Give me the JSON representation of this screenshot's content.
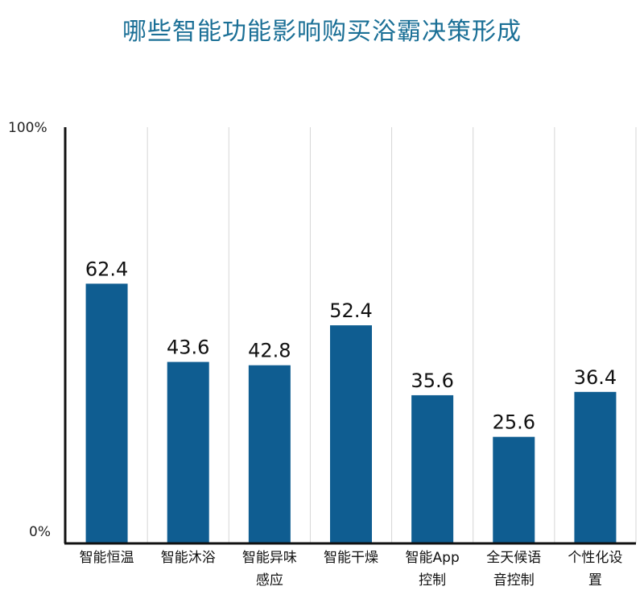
{
  "chart_data": {
    "type": "bar",
    "title": "哪些智能功能影响购买浴霸决策形成",
    "categories": [
      [
        "智能恒温"
      ],
      [
        "智能沐浴"
      ],
      [
        "智能异味",
        "感应"
      ],
      [
        "智能干燥"
      ],
      [
        "智能App",
        "控制"
      ],
      [
        "全天候语",
        "音控制"
      ],
      [
        "个性化设",
        "置"
      ]
    ],
    "values": [
      62.4,
      43.6,
      42.8,
      52.4,
      35.6,
      25.6,
      36.4
    ],
    "value_labels": [
      "62.4",
      "43.6",
      "42.8",
      "52.4",
      "35.6",
      "25.6",
      "36.4"
    ],
    "ylim": [
      0,
      100
    ],
    "y_tick_labels": {
      "top": "100%",
      "bottom": "0%"
    },
    "xlabel": "",
    "ylabel": "",
    "grid": "vertical-separators",
    "colors": {
      "bar": "#0f5d91",
      "title": "#1a6f96",
      "axis": "#111111",
      "grid": "#d6d6d6"
    }
  }
}
